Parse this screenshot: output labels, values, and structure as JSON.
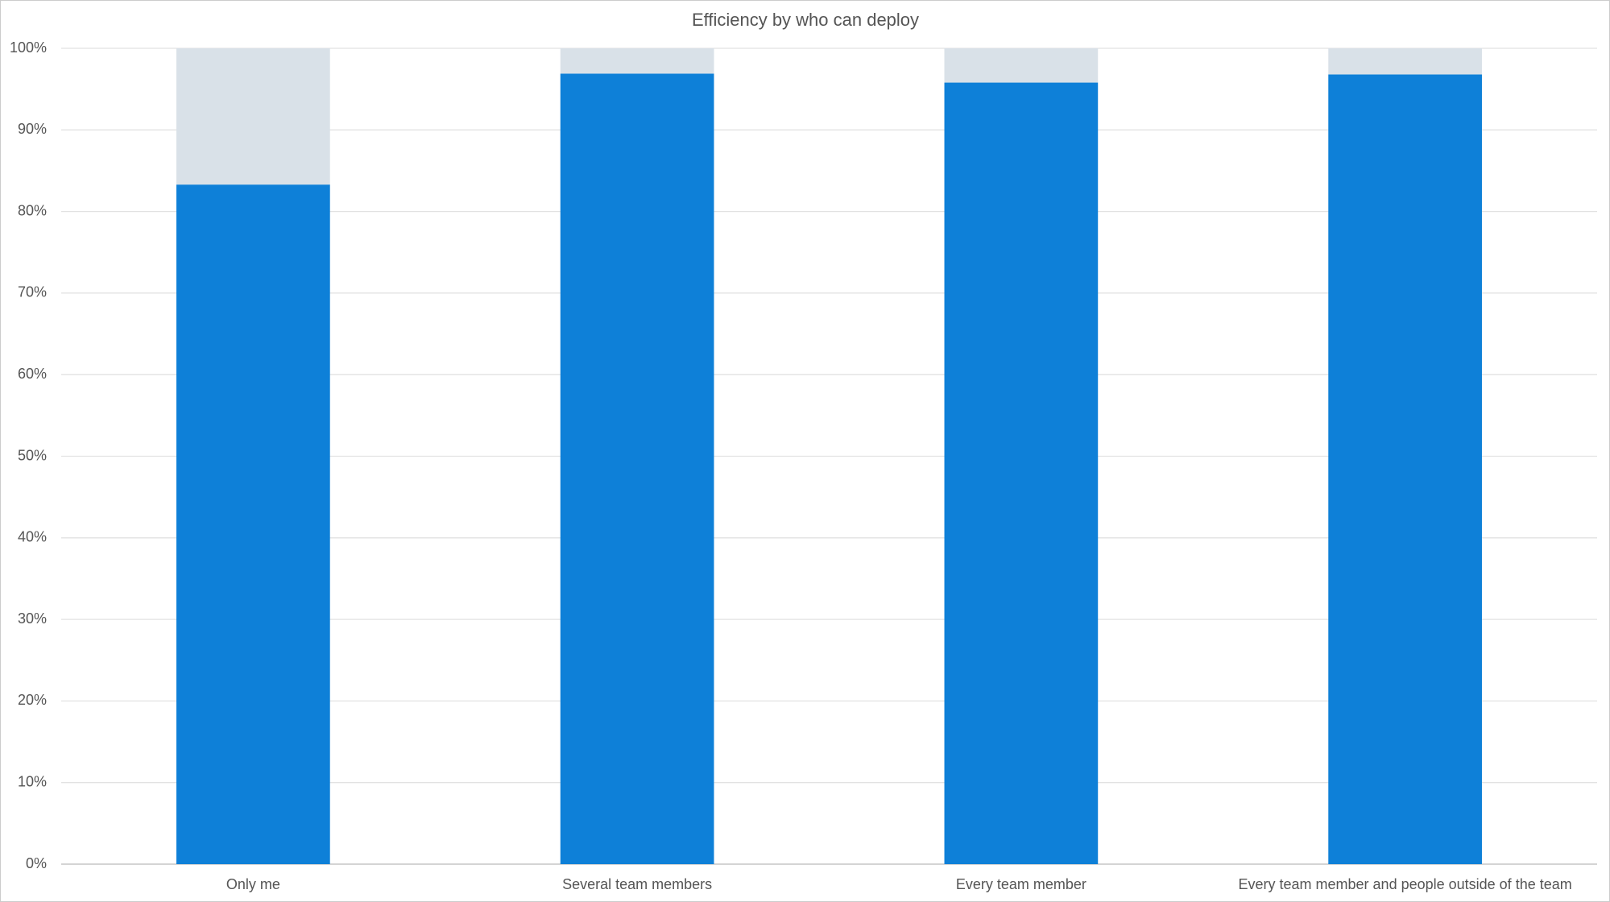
{
  "chart_data": {
    "type": "stacked_bar",
    "title": "Efficiency by who can deploy",
    "categories": [
      "Only me",
      "Several team members",
      "Every team member",
      "Every team member and people outside of the team"
    ],
    "series": [
      {
        "color": "#0e80d8",
        "values": [
          83.3,
          96.9,
          95.8,
          96.8
        ]
      },
      {
        "color": "#d9e1e8",
        "values": [
          16.7,
          3.1,
          4.2,
          3.2
        ]
      }
    ],
    "ylim": [
      0,
      100
    ],
    "yticks": [
      {
        "value": 0,
        "label": "0%"
      },
      {
        "value": 10,
        "label": "10%"
      },
      {
        "value": 20,
        "label": "20%"
      },
      {
        "value": 30,
        "label": "30%"
      },
      {
        "value": 40,
        "label": "40%"
      },
      {
        "value": 50,
        "label": "50%"
      },
      {
        "value": 60,
        "label": "60%"
      },
      {
        "value": 70,
        "label": "70%"
      },
      {
        "value": 80,
        "label": "80%"
      },
      {
        "value": 90,
        "label": "90%"
      },
      {
        "value": 100,
        "label": "100%"
      }
    ],
    "grid": true
  }
}
